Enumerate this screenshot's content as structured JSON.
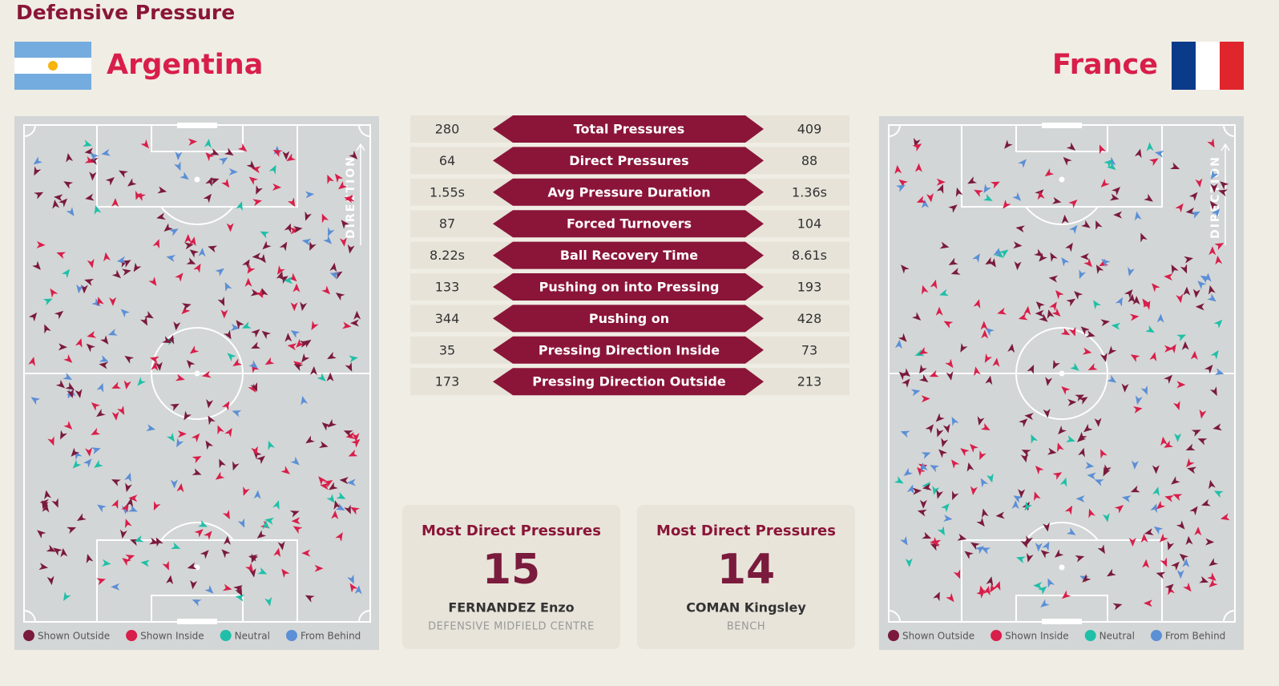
{
  "header": {
    "title": "Defensive Pressure"
  },
  "teams": [
    {
      "name": "Argentina"
    },
    {
      "name": "France"
    }
  ],
  "stats": [
    {
      "home": 280,
      "label": "Total Pressures",
      "away": 409
    },
    {
      "home": 64,
      "label": "Direct Pressures",
      "away": 88
    },
    {
      "home": "1.55s",
      "label": "Avg Pressure Duration",
      "away": "1.36s"
    },
    {
      "home": 87,
      "label": "Forced Turnovers",
      "away": 104
    },
    {
      "home": "8.22s",
      "label": "Ball Recovery Time",
      "away": "8.61s"
    },
    {
      "home": 133,
      "label": "Pushing on into Pressing",
      "away": 193
    },
    {
      "home": 344,
      "label": "Pushing on",
      "away": 428
    },
    {
      "home": 35,
      "label": "Pressing Direction Inside",
      "away": 73
    },
    {
      "home": 173,
      "label": "Pressing Direction Outside",
      "away": 213
    }
  ],
  "legend": [
    {
      "label": "Shown Outside",
      "color": "#7a1a3c"
    },
    {
      "label": "Shown Inside",
      "color": "#d81e4a"
    },
    {
      "label": "Neutral",
      "color": "#1fbfa8"
    },
    {
      "label": "From Behind",
      "color": "#5b8fd6"
    }
  ],
  "pitch_label": "DIRECTION",
  "cards": [
    {
      "title": "Most Direct Pressures",
      "value": 15,
      "player": "FERNANDEZ Enzo",
      "position": "DEFENSIVE MIDFIELD CENTRE"
    },
    {
      "title": "Most Direct Pressures",
      "value": 14,
      "player": "COMAN Kingsley",
      "position": "BENCH"
    }
  ]
}
